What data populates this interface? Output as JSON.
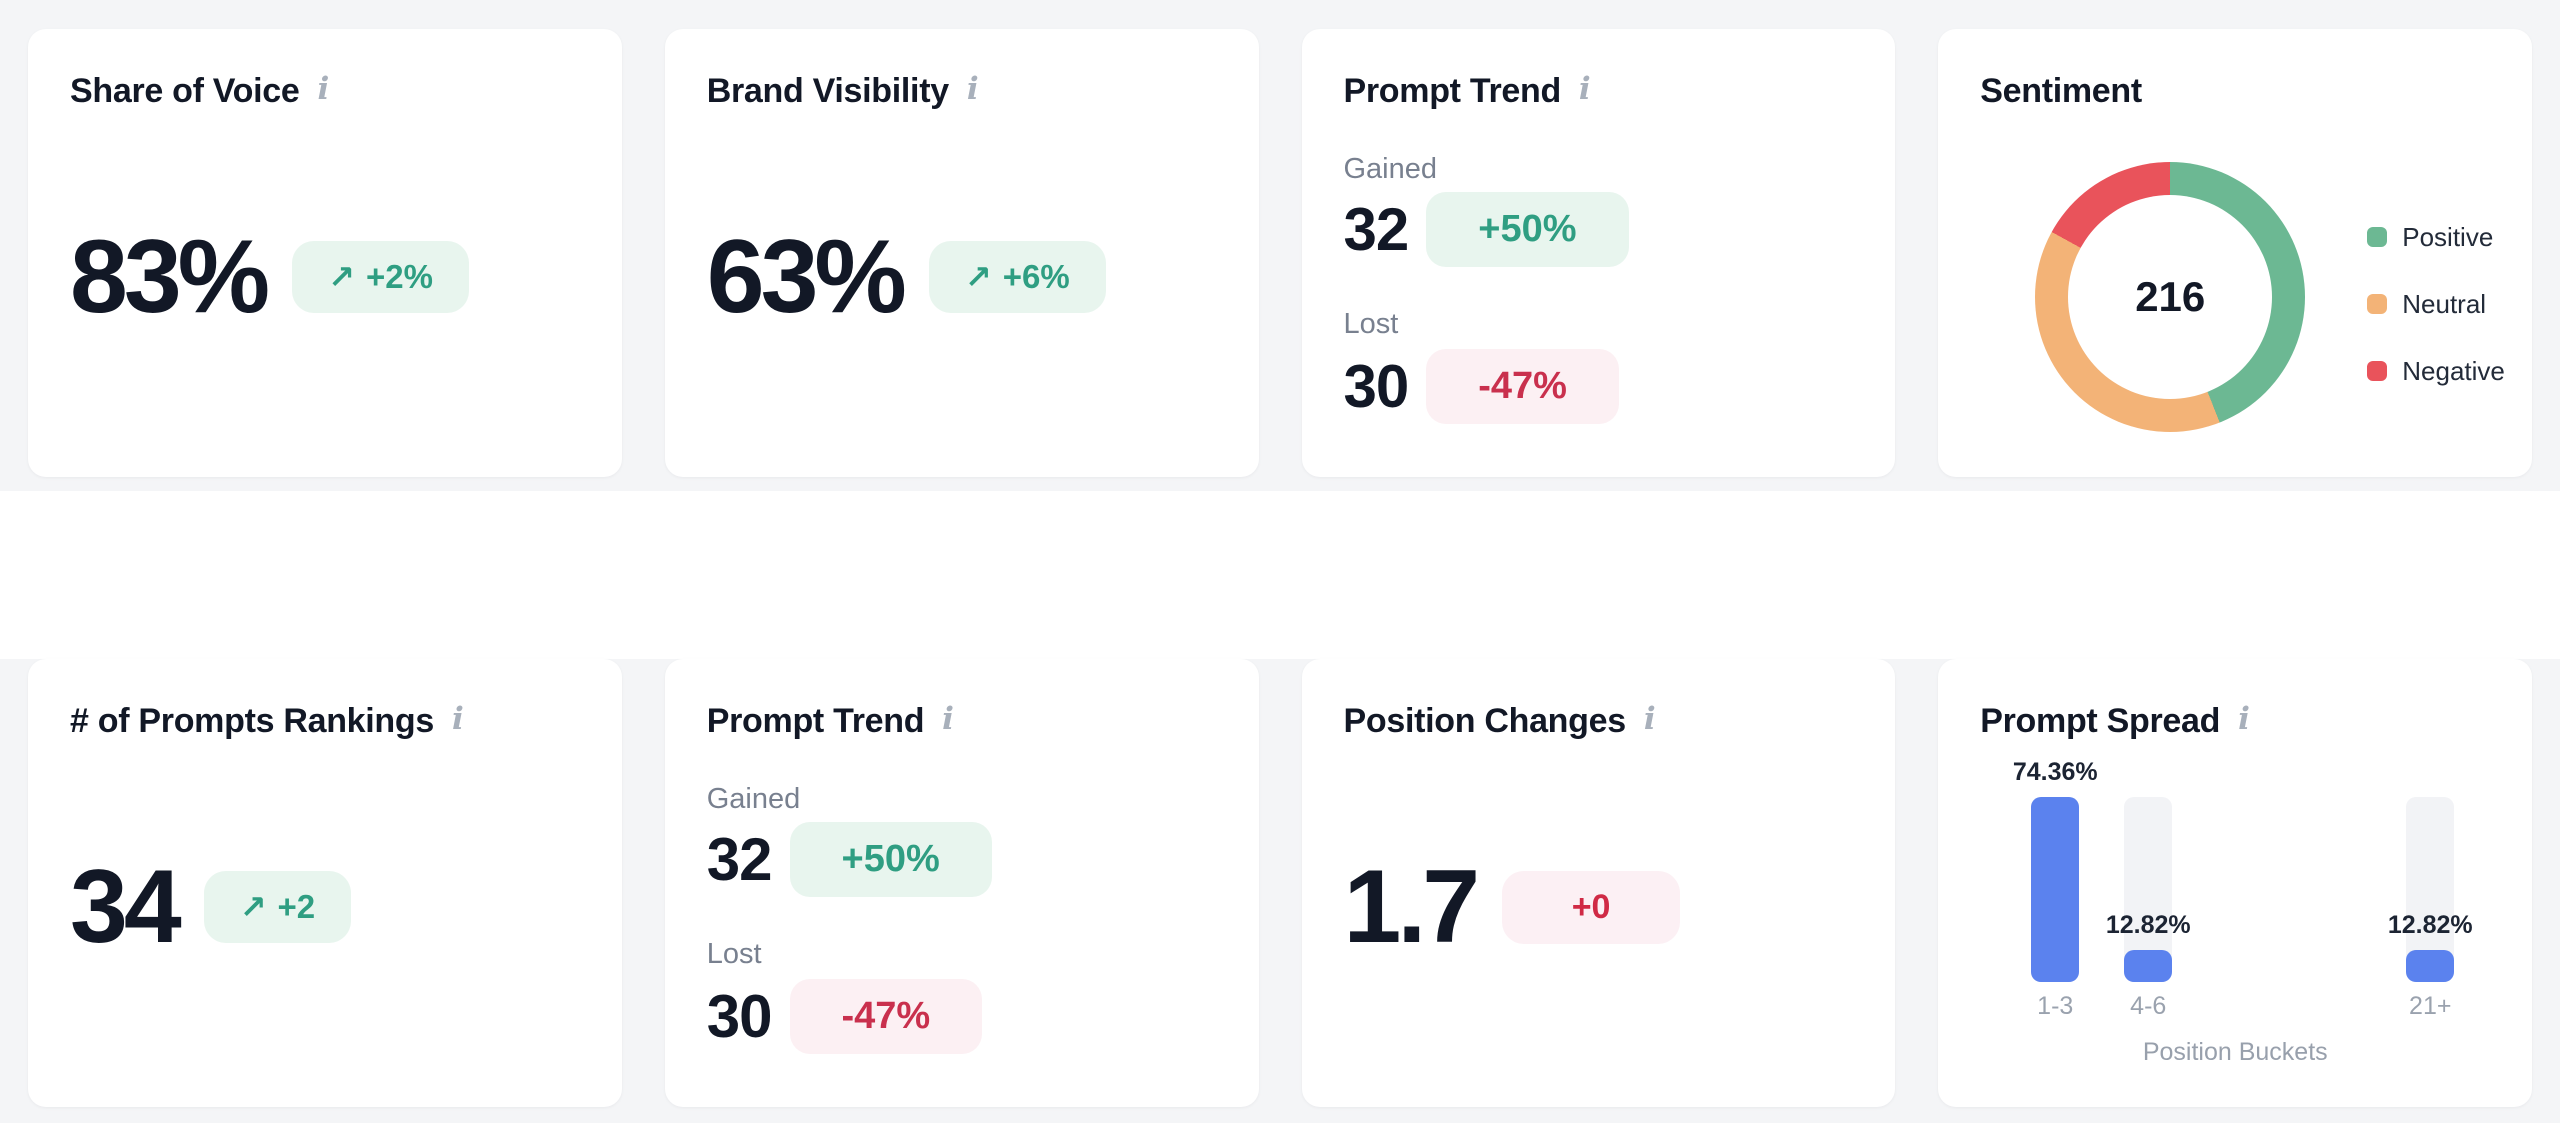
{
  "theme": {
    "section_bg": "#f4f5f7",
    "card_bg": "#ffffff",
    "title_color": "#121826",
    "muted_color": "#78808f",
    "green_text": "#2f9e82",
    "green_bg": "#e8f5ee",
    "red_text": "#c9304d",
    "red_bg": "#fcf0f3",
    "bar_blue": "#5b82ee"
  },
  "icons": {
    "info": "i",
    "trend_up": "↗"
  },
  "cards": {
    "share_of_voice": {
      "title": "Share of Voice",
      "value": "83%",
      "delta": "+2%"
    },
    "brand_visibility": {
      "title": "Brand Visibility",
      "value": "63%",
      "delta": "+6%"
    },
    "prompt_trend_1": {
      "title": "Prompt Trend",
      "gained_label": "Gained",
      "gained_value": "32",
      "gained_delta": "+50%",
      "lost_label": "Lost",
      "lost_value": "30",
      "lost_delta": "-47%"
    },
    "sentiment": {
      "title": "Sentiment"
    },
    "prompts_rankings": {
      "title": "# of Prompts Rankings",
      "value": "34",
      "delta": "+2"
    },
    "prompt_trend_2": {
      "title": "Prompt Trend",
      "gained_label": "Gained",
      "gained_value": "32",
      "gained_delta": "+50%",
      "lost_label": "Lost",
      "lost_value": "30",
      "lost_delta": "-47%"
    },
    "position_changes": {
      "title": "Position Changes",
      "value": "1.7",
      "delta": "+0"
    },
    "prompt_spread": {
      "title": "Prompt Spread",
      "xlabel": "Position Buckets"
    }
  },
  "chart_data": [
    {
      "type": "pie",
      "variant": "donut",
      "title": "Sentiment",
      "center_total": 216,
      "legend_position": "right",
      "segments": [
        {
          "label": "Positive",
          "percent": 44,
          "color": "#6cb893"
        },
        {
          "label": "Neutral",
          "percent": 39,
          "color": "#f3b377"
        },
        {
          "label": "Negative",
          "percent": 17,
          "color": "#e9535b"
        }
      ]
    },
    {
      "type": "bar",
      "title": "Prompt Spread",
      "xlabel": "Position Buckets",
      "categories": [
        "1-3",
        "4-6",
        "21+"
      ],
      "values": [
        74.36,
        12.82,
        12.82
      ],
      "value_labels": [
        "74.36%",
        "12.82%",
        "12.82%"
      ],
      "ylim": [
        0,
        74.36
      ],
      "bar_color": "#5b82ee",
      "track_color": "#f2f3f6",
      "grid": false
    }
  ]
}
